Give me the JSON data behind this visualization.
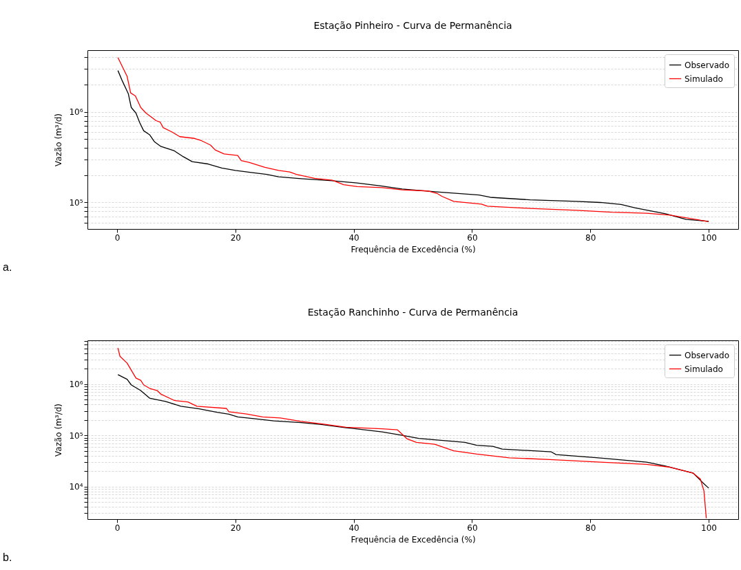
{
  "chart_data": [
    {
      "type": "line",
      "title": "Estação Pinheiro - Curva de Permanência",
      "xlabel": "Frequência de Excedência (%)",
      "ylabel": "Vazão (m³/d)",
      "annotations": [
        "a."
      ],
      "log": true,
      "grid": "y",
      "legend": "top right",
      "xlim": [
        -5,
        105
      ],
      "xticks": [
        0,
        20,
        40,
        60,
        80,
        100
      ],
      "ylim": [
        51000,
        4800000
      ],
      "yticks": [
        {
          "value": 60000,
          "label": null
        },
        {
          "value": 70000,
          "label": null
        },
        {
          "value": 80000,
          "label": null
        },
        {
          "value": 90000,
          "label": null
        },
        {
          "value": 100000,
          "label": "10⁵"
        },
        {
          "value": 200000,
          "label": null
        },
        {
          "value": 300000,
          "label": null
        },
        {
          "value": 400000,
          "label": null
        },
        {
          "value": 500000,
          "label": null
        },
        {
          "value": 600000,
          "label": null
        },
        {
          "value": 700000,
          "label": null
        },
        {
          "value": 800000,
          "label": null
        },
        {
          "value": 900000,
          "label": null
        },
        {
          "value": 1000000,
          "label": "10⁶"
        },
        {
          "value": 2000000,
          "label": null
        },
        {
          "value": 3000000,
          "label": null
        },
        {
          "value": 4000000,
          "label": null
        }
      ],
      "series": [
        {
          "name": "Observado",
          "color": "#000000",
          "x": [
            0.15,
            0.9,
            1.9,
            2.4,
            3.2,
            3.8,
            4.5,
            5.5,
            6.3,
            7.4,
            9.7,
            11.2,
            12.7,
            15.4,
            17.7,
            20,
            22.7,
            25.3,
            27.3,
            31.1,
            36.4,
            40.6,
            44.8,
            48.2,
            54.1,
            61.2,
            63.1,
            69.8,
            77.7,
            81.7,
            85.2,
            87.6,
            92.7,
            96.2,
            100
          ],
          "values": [
            2860000,
            2190000,
            1590000,
            1120000,
            970000,
            770000,
            620000,
            560000,
            470000,
            416000,
            371000,
            320000,
            282000,
            266000,
            240000,
            226000,
            214000,
            204000,
            192000,
            183000,
            174000,
            164000,
            152000,
            141000,
            131000,
            121000,
            114000,
            107000,
            103000,
            100000,
            95000,
            87000,
            75000,
            65000,
            62000
          ]
        },
        {
          "name": "Simulado",
          "color": "#ff0000",
          "x": [
            0.15,
            1.7,
            2.3,
            3.1,
            4.0,
            4.9,
            6.6,
            7.3,
            7.8,
            9.3,
            10.6,
            13.1,
            14.3,
            15.8,
            16.6,
            18.1,
            20.4,
            21.0,
            22.3,
            25,
            27.3,
            29.2,
            30.3,
            33.4,
            36.4,
            38.3,
            40.6,
            44.8,
            48.2,
            52.5,
            54.1,
            54.9,
            56.9,
            61.6,
            62.6,
            69.8,
            77.7,
            83.6,
            89.5,
            93.5,
            100
          ],
          "values": [
            3980000,
            2470000,
            1620000,
            1500000,
            1120000,
            970000,
            800000,
            770000,
            670000,
            600000,
            533000,
            510000,
            480000,
            430000,
            380000,
            344000,
            330000,
            290000,
            277000,
            244000,
            226000,
            217000,
            204000,
            185000,
            176000,
            157000,
            150000,
            146000,
            138000,
            134000,
            126000,
            117000,
            103000,
            96000,
            91000,
            86000,
            82000,
            78000,
            76000,
            72500,
            61500
          ]
        }
      ]
    },
    {
      "type": "line",
      "title": "Estação Ranchinho - Curva de Permanência",
      "xlabel": "Frequência de Excedência (%)",
      "ylabel": "Vazão (m³/d)",
      "annotations": [
        "b."
      ],
      "log": true,
      "grid": "y",
      "legend": "top right",
      "xlim": [
        -5,
        105
      ],
      "xticks": [
        0,
        20,
        40,
        60,
        80,
        100
      ],
      "ylim": [
        2300,
        7200000
      ],
      "yticks": [
        {
          "value": 3000,
          "label": null
        },
        {
          "value": 4000,
          "label": null
        },
        {
          "value": 5000,
          "label": null
        },
        {
          "value": 6000,
          "label": null
        },
        {
          "value": 7000,
          "label": null
        },
        {
          "value": 8000,
          "label": null
        },
        {
          "value": 9000,
          "label": null
        },
        {
          "value": 10000,
          "label": "10⁴"
        },
        {
          "value": 20000,
          "label": null
        },
        {
          "value": 30000,
          "label": null
        },
        {
          "value": 40000,
          "label": null
        },
        {
          "value": 50000,
          "label": null
        },
        {
          "value": 60000,
          "label": null
        },
        {
          "value": 70000,
          "label": null
        },
        {
          "value": 80000,
          "label": null
        },
        {
          "value": 90000,
          "label": null
        },
        {
          "value": 100000,
          "label": "10⁵"
        },
        {
          "value": 200000,
          "label": null
        },
        {
          "value": 300000,
          "label": null
        },
        {
          "value": 400000,
          "label": null
        },
        {
          "value": 500000,
          "label": null
        },
        {
          "value": 600000,
          "label": null
        },
        {
          "value": 700000,
          "label": null
        },
        {
          "value": 800000,
          "label": null
        },
        {
          "value": 900000,
          "label": null
        },
        {
          "value": 1000000,
          "label": "10⁶"
        },
        {
          "value": 2000000,
          "label": null
        },
        {
          "value": 3000000,
          "label": null
        },
        {
          "value": 4000000,
          "label": null
        },
        {
          "value": 5000000,
          "label": null
        },
        {
          "value": 6000000,
          "label": null
        },
        {
          "value": 7000000,
          "label": null
        }
      ],
      "series": [
        {
          "name": "Observado",
          "color": "#000000",
          "x": [
            0.15,
            1.7,
            2.4,
            4.0,
            5.5,
            8.2,
            10.8,
            13.9,
            16.9,
            18.9,
            20.4,
            23.4,
            26.5,
            31.1,
            34.5,
            38.7,
            44.8,
            48.2,
            51,
            58.8,
            60.8,
            63.5,
            65.1,
            73.4,
            74.2,
            81.7,
            89.5,
            92.5,
            97.4,
            99.0,
            100
          ],
          "values": [
            1540000,
            1250000,
            970000,
            750000,
            534000,
            460000,
            370000,
            330000,
            282000,
            260000,
            229000,
            211000,
            192000,
            177000,
            163000,
            141000,
            117000,
            100000,
            87000,
            73000,
            64000,
            61000,
            54000,
            47500,
            42000,
            36000,
            30000,
            25500,
            18200,
            11900,
            9300
          ]
        },
        {
          "name": "Simulado",
          "color": "#ff0000",
          "x": [
            0.15,
            0.5,
            1.7,
            3.2,
            4.0,
            4.5,
            5.5,
            6.8,
            7.4,
            9.7,
            12,
            13.5,
            18.5,
            18.9,
            21.9,
            24.6,
            27.6,
            31.1,
            34.5,
            38.7,
            44.8,
            47.4,
            49,
            50.6,
            53.7,
            56.9,
            60.8,
            66.3,
            73.8,
            81.7,
            89.5,
            93.5,
            97.4,
            98.6,
            99.2,
            99.6
          ],
          "values": [
            5100000,
            3500000,
            2580000,
            1320000,
            1190000,
            970000,
            830000,
            750000,
            640000,
            480000,
            450000,
            370000,
            336000,
            288000,
            262000,
            229000,
            218000,
            187000,
            168000,
            144000,
            134000,
            128000,
            86000,
            73000,
            67000,
            50000,
            43000,
            36400,
            33400,
            30000,
            27000,
            23800,
            18200,
            14000,
            8200,
            2400
          ]
        }
      ]
    }
  ]
}
